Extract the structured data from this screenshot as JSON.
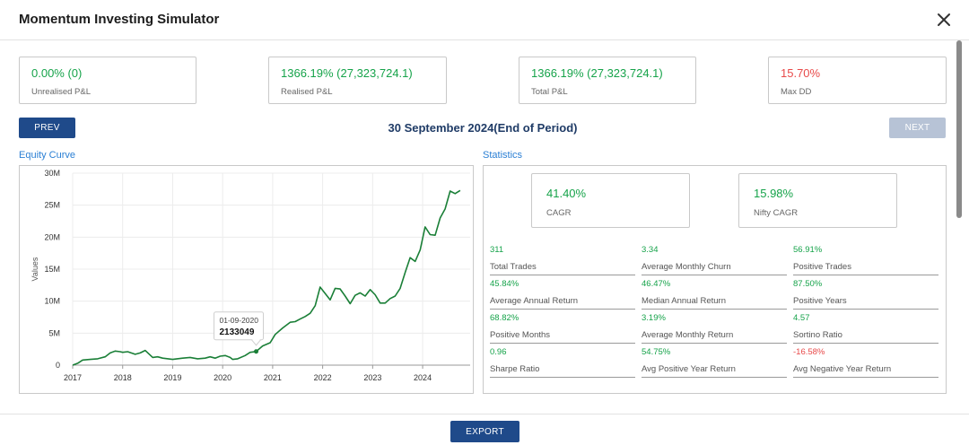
{
  "app": {
    "title": "Momentum Investing Simulator"
  },
  "summary_cards": [
    {
      "value": "0.00% (0)",
      "label": "Unrealised P&L",
      "color": "#16a34a"
    },
    {
      "value": "1366.19% (27,323,724.1)",
      "label": "Realised P&L",
      "color": "#16a34a"
    },
    {
      "value": "1366.19% (27,323,724.1)",
      "label": "Total P&L",
      "color": "#16a34a"
    },
    {
      "value": "15.70%",
      "label": "Max DD",
      "color": "#e84a4a"
    }
  ],
  "nav": {
    "prev_label": "PREV",
    "next_label": "NEXT",
    "period": "30 September 2024(End of Period)"
  },
  "sections": {
    "chart_title": "Equity Curve",
    "stats_title": "Statistics"
  },
  "highlight_cards": [
    {
      "value": "41.40%",
      "label": "CAGR"
    },
    {
      "value": "15.98%",
      "label": "Nifty CAGR"
    }
  ],
  "stats": [
    {
      "value": "311",
      "label": "Total Trades",
      "color": "#16a34a"
    },
    {
      "value": "3.34",
      "label": "Average Monthly Churn",
      "color": "#16a34a"
    },
    {
      "value": "56.91%",
      "label": "Positive Trades",
      "color": "#16a34a"
    },
    {
      "value": "45.84%",
      "label": "Average Annual Return",
      "color": "#16a34a"
    },
    {
      "value": "46.47%",
      "label": "Median Annual Return",
      "color": "#16a34a"
    },
    {
      "value": "87.50%",
      "label": "Positive Years",
      "color": "#16a34a"
    },
    {
      "value": "68.82%",
      "label": "Positive Months",
      "color": "#16a34a"
    },
    {
      "value": "3.19%",
      "label": "Average Monthly Return",
      "color": "#16a34a"
    },
    {
      "value": "4.57",
      "label": "Sortino Ratio",
      "color": "#16a34a"
    },
    {
      "value": "0.96",
      "label": "Sharpe Ratio",
      "color": "#16a34a"
    },
    {
      "value": "54.75%",
      "label": "Avg Positive Year Return",
      "color": "#16a34a"
    },
    {
      "value": "-16.58%",
      "label": "Avg Negative Year Return",
      "color": "#e84a4a"
    }
  ],
  "footer": {
    "export_label": "EXPORT"
  },
  "chart_data": {
    "type": "line",
    "ylabel": "Values",
    "xlabel": "",
    "ylim": [
      0,
      30000000
    ],
    "xlim": [
      2017.0,
      2024.95
    ],
    "y_ticks": [
      {
        "value": 0,
        "label": "0"
      },
      {
        "value": 5000000,
        "label": "5M"
      },
      {
        "value": 10000000,
        "label": "10M"
      },
      {
        "value": 15000000,
        "label": "15M"
      },
      {
        "value": 20000000,
        "label": "20M"
      },
      {
        "value": 25000000,
        "label": "25M"
      },
      {
        "value": 30000000,
        "label": "30M"
      }
    ],
    "x_ticks": [
      {
        "value": 2017,
        "label": "2017"
      },
      {
        "value": 2018,
        "label": "2018"
      },
      {
        "value": 2019,
        "label": "2019"
      },
      {
        "value": 2020,
        "label": "2020"
      },
      {
        "value": 2021,
        "label": "2021"
      },
      {
        "value": 2022,
        "label": "2022"
      },
      {
        "value": 2023,
        "label": "2023"
      },
      {
        "value": 2024,
        "label": "2024"
      }
    ],
    "grid": true,
    "line_color": "#1a7f37",
    "tooltip": {
      "date": "01-09-2020",
      "value": "2133049",
      "x": 2020.67,
      "y": 2133049
    },
    "series": [
      {
        "x": [
          2017.0,
          2017.1,
          2017.2,
          2017.35,
          2017.5,
          2017.65,
          2017.75,
          2017.85,
          2017.95,
          2018.0,
          2018.1,
          2018.25,
          2018.35,
          2018.45,
          2018.6,
          2018.7,
          2018.8,
          2019.0,
          2019.2,
          2019.35,
          2019.5,
          2019.65,
          2019.75,
          2019.85,
          2019.95,
          2020.05,
          2020.15,
          2020.2,
          2020.3,
          2020.45,
          2020.55,
          2020.67,
          2020.8,
          2020.95,
          2021.05,
          2021.2,
          2021.35,
          2021.45,
          2021.55,
          2021.65,
          2021.75,
          2021.85,
          2021.95,
          2022.05,
          2022.15,
          2022.25,
          2022.35,
          2022.45,
          2022.55,
          2022.65,
          2022.75,
          2022.85,
          2022.95,
          2023.05,
          2023.15,
          2023.25,
          2023.35,
          2023.45,
          2023.55,
          2023.65,
          2023.75,
          2023.85,
          2023.95,
          2024.05,
          2024.15,
          2024.25,
          2024.35,
          2024.45,
          2024.55,
          2024.65,
          2024.75
        ],
        "y": [
          0,
          300000,
          800000,
          900000,
          1000000,
          1300000,
          1900000,
          2200000,
          2100000,
          2000000,
          2100000,
          1700000,
          1900000,
          2300000,
          1200000,
          1300000,
          1100000,
          900000,
          1100000,
          1200000,
          1000000,
          1100000,
          1300000,
          1100000,
          1400000,
          1500000,
          1200000,
          900000,
          1000000,
          1500000,
          2000000,
          2133049,
          3000000,
          3500000,
          4800000,
          5800000,
          6700000,
          6800000,
          7200000,
          7600000,
          8100000,
          9300000,
          12200000,
          11200000,
          10200000,
          12000000,
          11900000,
          10800000,
          9600000,
          10900000,
          11300000,
          10800000,
          11800000,
          11000000,
          9700000,
          9700000,
          10400000,
          10800000,
          12000000,
          14500000,
          16800000,
          16200000,
          18000000,
          21600000,
          20400000,
          20300000,
          23000000,
          24400000,
          27200000,
          26800000,
          27300000
        ]
      }
    ]
  }
}
